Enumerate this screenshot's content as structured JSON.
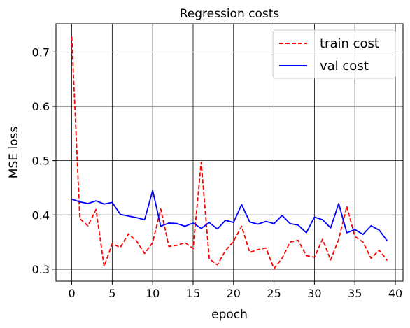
{
  "chart_data": {
    "type": "line",
    "title": "Regression costs",
    "xlabel": "epoch",
    "ylabel": "MSE loss",
    "xlim": [
      -1.95,
      40.95
    ],
    "ylim": [
      0.278,
      0.752
    ],
    "xticks": [
      0,
      5,
      10,
      15,
      20,
      25,
      30,
      35,
      40
    ],
    "yticks": [
      0.3,
      0.4,
      0.5,
      0.6,
      0.7
    ],
    "grid": true,
    "legend_position": "top-right",
    "series": [
      {
        "name": "train cost",
        "color": "#ff0000",
        "style": "dashed",
        "x": [
          0,
          1,
          2,
          3,
          4,
          5,
          6,
          7,
          8,
          9,
          10,
          11,
          12,
          13,
          14,
          15,
          16,
          17,
          18,
          19,
          20,
          21,
          22,
          23,
          24,
          25,
          26,
          27,
          28,
          29,
          30,
          31,
          32,
          33,
          34,
          35,
          36,
          37,
          38,
          39
        ],
        "values": [
          0.728,
          0.393,
          0.38,
          0.41,
          0.305,
          0.347,
          0.34,
          0.365,
          0.352,
          0.329,
          0.349,
          0.411,
          0.342,
          0.344,
          0.349,
          0.338,
          0.497,
          0.319,
          0.308,
          0.334,
          0.351,
          0.379,
          0.331,
          0.336,
          0.339,
          0.301,
          0.32,
          0.35,
          0.353,
          0.325,
          0.322,
          0.355,
          0.317,
          0.355,
          0.416,
          0.36,
          0.35,
          0.32,
          0.335,
          0.316
        ]
      },
      {
        "name": "val cost",
        "color": "#0000ff",
        "style": "solid",
        "x": [
          0,
          1,
          2,
          3,
          4,
          5,
          6,
          7,
          8,
          9,
          10,
          11,
          12,
          13,
          14,
          15,
          16,
          17,
          18,
          19,
          20,
          21,
          22,
          23,
          24,
          25,
          26,
          27,
          28,
          29,
          30,
          31,
          32,
          33,
          34,
          35,
          36,
          37,
          38,
          39
        ],
        "values": [
          0.429,
          0.424,
          0.421,
          0.426,
          0.42,
          0.423,
          0.401,
          0.398,
          0.395,
          0.391,
          0.445,
          0.379,
          0.385,
          0.384,
          0.379,
          0.385,
          0.375,
          0.386,
          0.374,
          0.39,
          0.386,
          0.419,
          0.387,
          0.383,
          0.388,
          0.384,
          0.399,
          0.384,
          0.381,
          0.367,
          0.396,
          0.391,
          0.376,
          0.421,
          0.367,
          0.373,
          0.364,
          0.38,
          0.372,
          0.352
        ]
      }
    ]
  }
}
